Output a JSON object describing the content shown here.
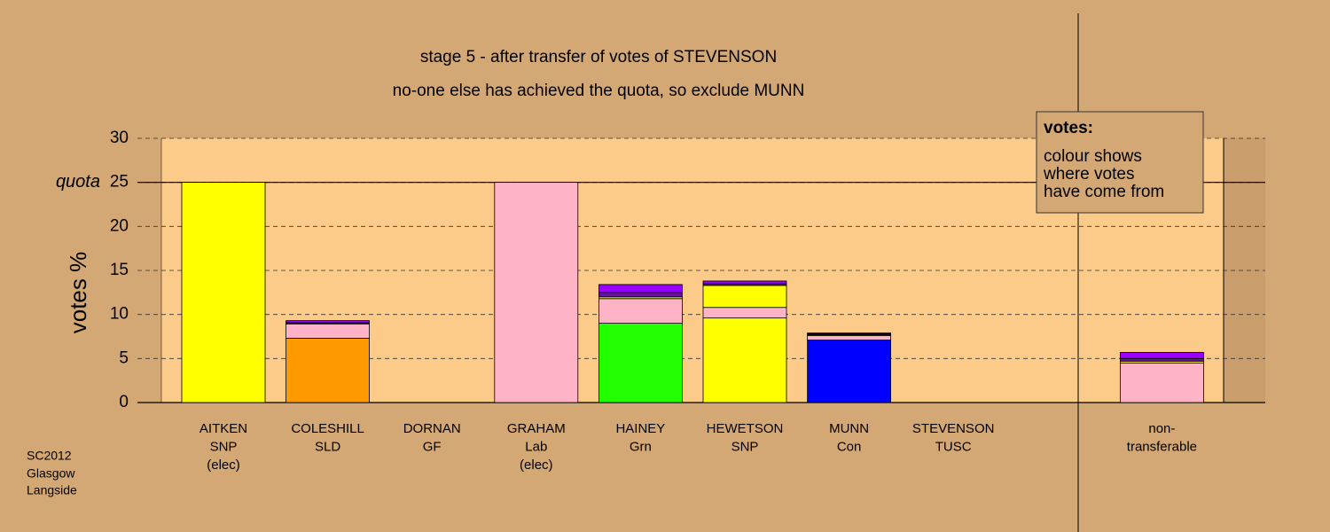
{
  "chart_data": {
    "type": "stacked_bar",
    "title": "stage 5 - after transfer of votes of STEVENSON",
    "subtitle": "no-one else has achieved the quota, so exclude MUNN",
    "y_label": "votes %",
    "categories": [
      [
        "AITKEN",
        "SNP",
        "(elec)"
      ],
      [
        "COLESHILL",
        "SLD"
      ],
      [
        "DORNAN",
        "GF"
      ],
      [
        "GRAHAM",
        "Lab",
        "(elec)"
      ],
      [
        "HAINEY",
        "Grn"
      ],
      [
        "HEWETSON",
        "SNP"
      ],
      [
        "MUNN",
        "Con"
      ],
      [
        "STEVENSON",
        "TUSC"
      ],
      null,
      [
        "non-",
        "transferable"
      ]
    ],
    "series": [
      {
        "color": "#ffff00",
        "values": [
          25,
          null,
          null,
          null,
          null,
          9.6,
          null,
          null,
          null,
          null
        ]
      },
      {
        "color": "#ff9900",
        "values": [
          null,
          7.3,
          null,
          null,
          null,
          null,
          null,
          null,
          null,
          null
        ]
      },
      {
        "color": "#ffb3c6",
        "values": [
          null,
          null,
          null,
          25,
          null,
          null,
          null,
          null,
          null,
          4.5
        ]
      },
      {
        "color": "#22ff00",
        "values": [
          null,
          null,
          null,
          null,
          9,
          null,
          null,
          null,
          null,
          null
        ]
      },
      {
        "color": "#0000ff",
        "values": [
          null,
          null,
          null,
          null,
          null,
          null,
          7.1,
          null,
          null,
          null
        ]
      },
      {
        "color": "#ffb3c6",
        "values": [
          null,
          1.6,
          null,
          null,
          2.8,
          1.2,
          0.5,
          null,
          null,
          null
        ]
      },
      {
        "color": "#ffff00",
        "values": [
          null,
          0.1,
          null,
          null,
          0.2,
          2.5,
          0.1,
          null,
          null,
          0.2
        ]
      },
      {
        "color": "#6a0dad",
        "values": [
          null,
          0.1,
          null,
          null,
          0.5,
          0.2,
          0.1,
          null,
          null,
          0.3
        ]
      },
      {
        "color": "#9900ff",
        "values": [
          null,
          0.2,
          null,
          null,
          0.9,
          0.3,
          0.1,
          null,
          null,
          0.7
        ]
      }
    ],
    "ylim": [
      0,
      30
    ],
    "yticks": [
      0,
      5,
      10,
      15,
      20,
      25,
      30
    ],
    "grid": true,
    "quota": {
      "value": 25,
      "label": "quota"
    },
    "legend": {
      "title": "votes:",
      "lines": [
        "colour shows",
        "where votes",
        "have come from"
      ]
    },
    "note": [
      "SC2012",
      "Glasgow",
      "Langside"
    ]
  }
}
